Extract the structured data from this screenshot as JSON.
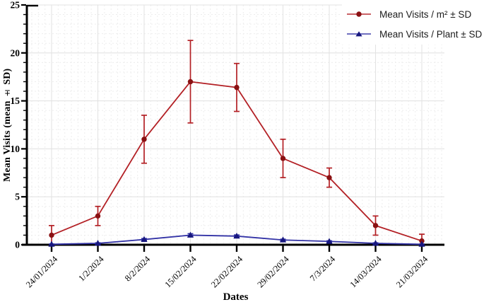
{
  "chart_data": {
    "type": "line",
    "title": "",
    "xlabel": "Dates",
    "ylabel": "Mean Visits (mean ± SD)",
    "ylim": [
      0,
      25
    ],
    "y_major_step": 5,
    "y_minor_step": 1,
    "grid": "major solid gray at 5-unit y and each date; fine dotted minor grid (1-unit y, daily x)",
    "legend_position": "top-right, no border, white background",
    "categories": [
      "24/01/2024",
      "1/2/2024",
      "8/2/2024",
      "15/02/2024",
      "22/02/2024",
      "29/02/2024",
      "7/3/2024",
      "14/03/2024",
      "21/03/2024"
    ],
    "series": [
      {
        "name": "Mean Visits / m² ± SD",
        "marker": "circle",
        "line_color": "#b32025",
        "marker_color": "#8a1113",
        "values": [
          1,
          3,
          11,
          17,
          16.4,
          9,
          7,
          2,
          0.4
        ],
        "sd": [
          1,
          1,
          2.5,
          4.3,
          2.5,
          2,
          1,
          1,
          0.7
        ]
      },
      {
        "name": "Mean Visits / Plant ± SD",
        "marker": "triangle",
        "line_color": "#3333a6",
        "marker_color": "#17177f",
        "values": [
          0.05,
          0.15,
          0.55,
          1.0,
          0.9,
          0.5,
          0.35,
          0.15,
          0.05
        ],
        "sd": [
          0.03,
          0.05,
          0.1,
          0.15,
          0.12,
          0.08,
          0.06,
          0.05,
          0.03
        ]
      }
    ],
    "colors": {
      "axis": "#000000",
      "major_grid": "#e3e3e3",
      "minor_grid": "#ededed",
      "tick_label": "#000000"
    }
  }
}
